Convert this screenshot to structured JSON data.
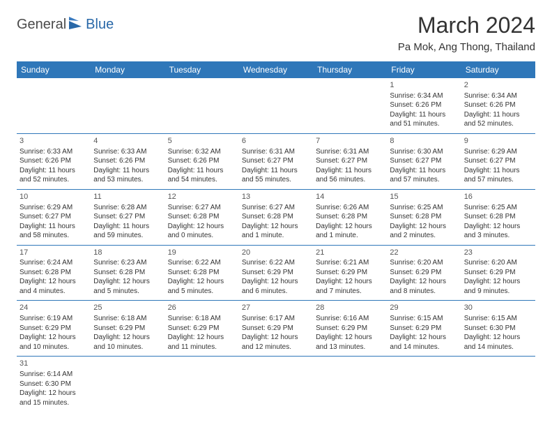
{
  "logo": {
    "general": "General",
    "blue": "Blue"
  },
  "title": "March 2024",
  "location": "Pa Mok, Ang Thong, Thailand",
  "weekdays": [
    "Sunday",
    "Monday",
    "Tuesday",
    "Wednesday",
    "Thursday",
    "Friday",
    "Saturday"
  ],
  "header_bg": "#2f77b9",
  "header_fg": "#ffffff",
  "border_color": "#2f77b9",
  "weeks": [
    [
      null,
      null,
      null,
      null,
      null,
      {
        "n": "1",
        "sunrise": "Sunrise: 6:34 AM",
        "sunset": "Sunset: 6:26 PM",
        "daylight": "Daylight: 11 hours and 51 minutes."
      },
      {
        "n": "2",
        "sunrise": "Sunrise: 6:34 AM",
        "sunset": "Sunset: 6:26 PM",
        "daylight": "Daylight: 11 hours and 52 minutes."
      }
    ],
    [
      {
        "n": "3",
        "sunrise": "Sunrise: 6:33 AM",
        "sunset": "Sunset: 6:26 PM",
        "daylight": "Daylight: 11 hours and 52 minutes."
      },
      {
        "n": "4",
        "sunrise": "Sunrise: 6:33 AM",
        "sunset": "Sunset: 6:26 PM",
        "daylight": "Daylight: 11 hours and 53 minutes."
      },
      {
        "n": "5",
        "sunrise": "Sunrise: 6:32 AM",
        "sunset": "Sunset: 6:26 PM",
        "daylight": "Daylight: 11 hours and 54 minutes."
      },
      {
        "n": "6",
        "sunrise": "Sunrise: 6:31 AM",
        "sunset": "Sunset: 6:27 PM",
        "daylight": "Daylight: 11 hours and 55 minutes."
      },
      {
        "n": "7",
        "sunrise": "Sunrise: 6:31 AM",
        "sunset": "Sunset: 6:27 PM",
        "daylight": "Daylight: 11 hours and 56 minutes."
      },
      {
        "n": "8",
        "sunrise": "Sunrise: 6:30 AM",
        "sunset": "Sunset: 6:27 PM",
        "daylight": "Daylight: 11 hours and 57 minutes."
      },
      {
        "n": "9",
        "sunrise": "Sunrise: 6:29 AM",
        "sunset": "Sunset: 6:27 PM",
        "daylight": "Daylight: 11 hours and 57 minutes."
      }
    ],
    [
      {
        "n": "10",
        "sunrise": "Sunrise: 6:29 AM",
        "sunset": "Sunset: 6:27 PM",
        "daylight": "Daylight: 11 hours and 58 minutes."
      },
      {
        "n": "11",
        "sunrise": "Sunrise: 6:28 AM",
        "sunset": "Sunset: 6:27 PM",
        "daylight": "Daylight: 11 hours and 59 minutes."
      },
      {
        "n": "12",
        "sunrise": "Sunrise: 6:27 AM",
        "sunset": "Sunset: 6:28 PM",
        "daylight": "Daylight: 12 hours and 0 minutes."
      },
      {
        "n": "13",
        "sunrise": "Sunrise: 6:27 AM",
        "sunset": "Sunset: 6:28 PM",
        "daylight": "Daylight: 12 hours and 1 minute."
      },
      {
        "n": "14",
        "sunrise": "Sunrise: 6:26 AM",
        "sunset": "Sunset: 6:28 PM",
        "daylight": "Daylight: 12 hours and 1 minute."
      },
      {
        "n": "15",
        "sunrise": "Sunrise: 6:25 AM",
        "sunset": "Sunset: 6:28 PM",
        "daylight": "Daylight: 12 hours and 2 minutes."
      },
      {
        "n": "16",
        "sunrise": "Sunrise: 6:25 AM",
        "sunset": "Sunset: 6:28 PM",
        "daylight": "Daylight: 12 hours and 3 minutes."
      }
    ],
    [
      {
        "n": "17",
        "sunrise": "Sunrise: 6:24 AM",
        "sunset": "Sunset: 6:28 PM",
        "daylight": "Daylight: 12 hours and 4 minutes."
      },
      {
        "n": "18",
        "sunrise": "Sunrise: 6:23 AM",
        "sunset": "Sunset: 6:28 PM",
        "daylight": "Daylight: 12 hours and 5 minutes."
      },
      {
        "n": "19",
        "sunrise": "Sunrise: 6:22 AM",
        "sunset": "Sunset: 6:28 PM",
        "daylight": "Daylight: 12 hours and 5 minutes."
      },
      {
        "n": "20",
        "sunrise": "Sunrise: 6:22 AM",
        "sunset": "Sunset: 6:29 PM",
        "daylight": "Daylight: 12 hours and 6 minutes."
      },
      {
        "n": "21",
        "sunrise": "Sunrise: 6:21 AM",
        "sunset": "Sunset: 6:29 PM",
        "daylight": "Daylight: 12 hours and 7 minutes."
      },
      {
        "n": "22",
        "sunrise": "Sunrise: 6:20 AM",
        "sunset": "Sunset: 6:29 PM",
        "daylight": "Daylight: 12 hours and 8 minutes."
      },
      {
        "n": "23",
        "sunrise": "Sunrise: 6:20 AM",
        "sunset": "Sunset: 6:29 PM",
        "daylight": "Daylight: 12 hours and 9 minutes."
      }
    ],
    [
      {
        "n": "24",
        "sunrise": "Sunrise: 6:19 AM",
        "sunset": "Sunset: 6:29 PM",
        "daylight": "Daylight: 12 hours and 10 minutes."
      },
      {
        "n": "25",
        "sunrise": "Sunrise: 6:18 AM",
        "sunset": "Sunset: 6:29 PM",
        "daylight": "Daylight: 12 hours and 10 minutes."
      },
      {
        "n": "26",
        "sunrise": "Sunrise: 6:18 AM",
        "sunset": "Sunset: 6:29 PM",
        "daylight": "Daylight: 12 hours and 11 minutes."
      },
      {
        "n": "27",
        "sunrise": "Sunrise: 6:17 AM",
        "sunset": "Sunset: 6:29 PM",
        "daylight": "Daylight: 12 hours and 12 minutes."
      },
      {
        "n": "28",
        "sunrise": "Sunrise: 6:16 AM",
        "sunset": "Sunset: 6:29 PM",
        "daylight": "Daylight: 12 hours and 13 minutes."
      },
      {
        "n": "29",
        "sunrise": "Sunrise: 6:15 AM",
        "sunset": "Sunset: 6:29 PM",
        "daylight": "Daylight: 12 hours and 14 minutes."
      },
      {
        "n": "30",
        "sunrise": "Sunrise: 6:15 AM",
        "sunset": "Sunset: 6:30 PM",
        "daylight": "Daylight: 12 hours and 14 minutes."
      }
    ],
    [
      {
        "n": "31",
        "sunrise": "Sunrise: 6:14 AM",
        "sunset": "Sunset: 6:30 PM",
        "daylight": "Daylight: 12 hours and 15 minutes."
      },
      null,
      null,
      null,
      null,
      null,
      null
    ]
  ]
}
